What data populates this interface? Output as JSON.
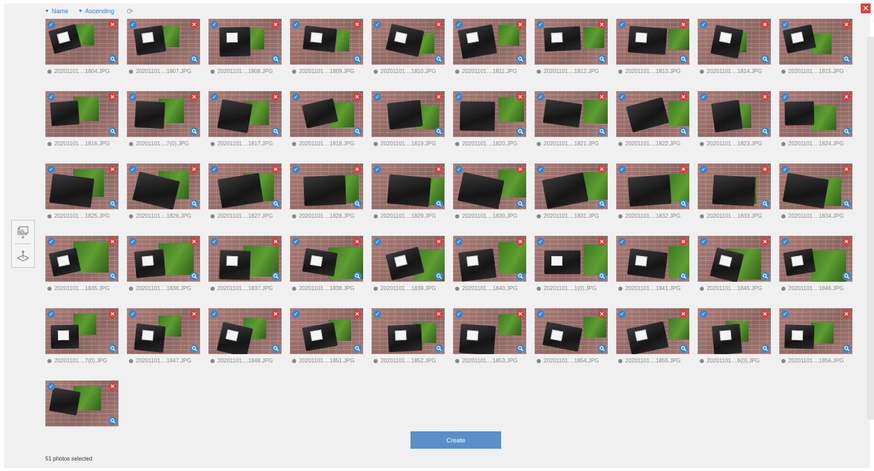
{
  "toolbar": {
    "sort_name": "Name",
    "sort_order": "Ascending",
    "refresh_icon": "refresh-icon",
    "close_icon": "close-icon"
  },
  "photos": [
    "20201101....1804.JPG",
    "20201101....1807.JPG",
    "20201101....1808.JPG",
    "20201101....1809.JPG",
    "20201101....1810.JPG",
    "20201101....1811.JPG",
    "20201101....1812.JPG",
    "20201101....1813.JPG",
    "20201101....1814.JPG",
    "20201101....1815.JPG",
    "20201101....1816.JPG",
    "20201101....7(0).JPG",
    "20201101....1817.JPG",
    "20201101....1818.JPG",
    "20201101....1819.JPG",
    "20201101....1820.JPG",
    "20201101....1821.JPG",
    "20201101....1822.JPG",
    "20201101....1823.JPG",
    "20201101....1824.JPG",
    "20201101....1825.JPG",
    "20201101....1826.JPG",
    "20201101....1827.JPG",
    "20201101....1828.JPG",
    "20201101....1829.JPG",
    "20201101....1830.JPG",
    "20201101....1831.JPG",
    "20201101....1832.JPG",
    "20201101....1833.JPG",
    "20201101....1834.JPG",
    "20201101....1835.JPG",
    "20201101....1836.JPG",
    "20201101....1837.JPG",
    "20201101....1838.JPG",
    "20201101....1839.JPG",
    "20201101....1840.JPG",
    "20201101....1(0).JPG",
    "20201101....1841.JPG",
    "20201101....1845.JPG",
    "20201101....1846.JPG",
    "20201101....7(0).JPG",
    "20201101....1847.JPG",
    "20201101....1848.JPG",
    "20201101....1851.JPG",
    "20201101....1852.JPG",
    "20201101....1853.JPG",
    "20201101....1854.JPG",
    "20201101....1855.JPG",
    "20201101....6(0).JPG",
    "20201101....1856.JPG",
    ""
  ],
  "side_tools": [
    "add-photos-icon",
    "ground-plane-icon"
  ],
  "footer": {
    "create_label": "Create",
    "selected_text": "51 photos selected"
  },
  "colors": {
    "accent": "#3d85c6",
    "remove": "#e03b3b",
    "button": "#5b8fc7"
  }
}
